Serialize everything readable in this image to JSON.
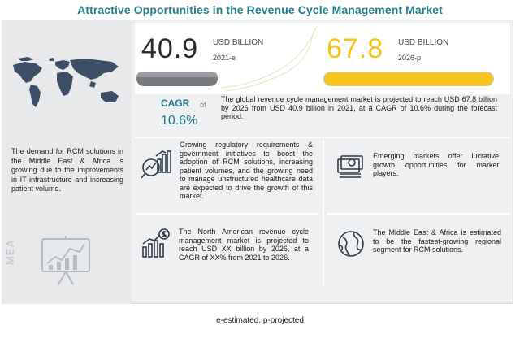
{
  "title": "Attractive Opportunities in the Revenue Cycle Management Market",
  "market_2021": {
    "value": "40.9",
    "unit": "USD BILLION",
    "year": "2021-e"
  },
  "market_2026": {
    "value": "67.8",
    "unit": "USD BILLION",
    "year": "2026-p"
  },
  "cagr": {
    "label": "CAGR",
    "of": "of",
    "value": "10.6%"
  },
  "summary": "The global revenue cycle management market is projected to reach USD 67.8 billion by 2026 from USD 40.9 billion in 2021, at a CAGR of 10.6% during the forecast period.",
  "left_panel": {
    "text": "The demand for RCM solutions in the Middle East & Africa is growing due to the improvements in IT infrastructure and increasing patient volume.",
    "region_label": "MEA"
  },
  "insights": [
    {
      "icon": "growth-magnifier-icon",
      "text": "Growing regulatory requirements & government initiatives to boost the adoption of RCM solutions, increasing patient volumes, and the growing need to manage unstructured healthcare data are expected to drive the growth of this market."
    },
    {
      "icon": "money-stack-icon",
      "text": "Emerging markets offer lucrative growth opportunities for market players."
    },
    {
      "icon": "dollar-bar-chart-icon",
      "text": "The North American revenue cycle management market is projected to reach USD XX billion by 2026, at a CAGR of XX% from 2021 to 2026."
    },
    {
      "icon": "globe-icon",
      "text": "The Middle East & Africa is estimated to be the fastest-growing regional segment for RCM solutions."
    }
  ],
  "footnote": "e-estimated, p-projected",
  "colors": {
    "title": "#1f7f8f",
    "accent_yellow": "#f7c51c",
    "bar_gray": "#777a7e",
    "panel_bg": "#eef0f2"
  }
}
